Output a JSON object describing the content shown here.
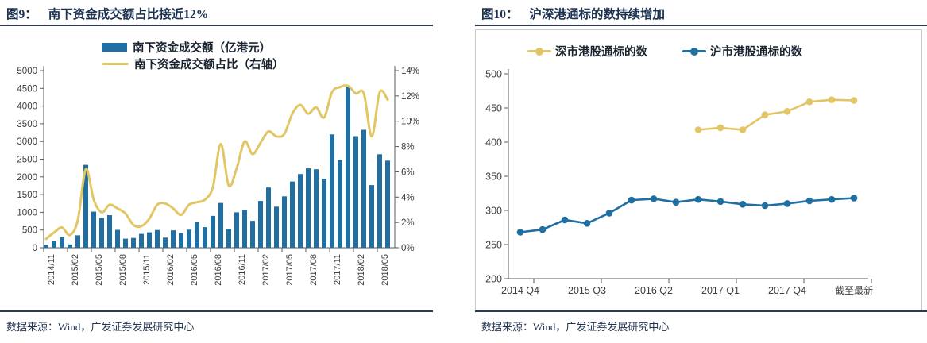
{
  "colors": {
    "bar_blue": "#1F6FA3",
    "line_yellow": "#E2C665",
    "title_navy": "#1C3250",
    "rule_navy": "#2B3A52",
    "frame_gray": "#C9C9C9",
    "axis_gray": "#595959",
    "axis_text": "#3d3d3d"
  },
  "figures": [
    {
      "title_prefix": "图9：",
      "title": "南下资金成交额占比接近12%",
      "source": "数据来源：Wind，广发证券发展研究中心",
      "chart_data": {
        "type": "combo bar+line",
        "categories": [
          "2014/11",
          "2014/12",
          "2015/01",
          "2015/02",
          "2015/03",
          "2015/04",
          "2015/05",
          "2015/06",
          "2015/07",
          "2015/08",
          "2015/09",
          "2015/10",
          "2015/11",
          "2015/12",
          "2016/01",
          "2016/02",
          "2016/03",
          "2016/04",
          "2016/05",
          "2016/06",
          "2016/07",
          "2016/08",
          "2016/09",
          "2016/10",
          "2016/11",
          "2016/12",
          "2017/01",
          "2017/02",
          "2017/03",
          "2017/04",
          "2017/05",
          "2017/06",
          "2017/07",
          "2017/08",
          "2017/09",
          "2017/10",
          "2017/11",
          "2017/12",
          "2018/01",
          "2018/02",
          "2018/03",
          "2018/04",
          "2018/05",
          "2018/06"
        ],
        "x_tick_labels": [
          "2014/11",
          "2015/02",
          "2015/05",
          "2015/08",
          "2015/11",
          "2016/02",
          "2016/05",
          "2016/08",
          "2016/11",
          "2017/02",
          "2017/05",
          "2017/08",
          "2017/11",
          "2018/02",
          "2018/05"
        ],
        "series": [
          {
            "name": "南下资金成交额（亿港元）",
            "type": "bar",
            "axis": "left",
            "color": "#1F6FA3",
            "values": [
              80,
              180,
              295,
              95,
              350,
              2340,
              1020,
              840,
              920,
              505,
              255,
              275,
              390,
              435,
              500,
              285,
              490,
              410,
              510,
              720,
              580,
              900,
              1265,
              530,
              1000,
              1070,
              760,
              1320,
              1700,
              1160,
              1450,
              1870,
              2080,
              2240,
              2215,
              1950,
              3200,
              2470,
              4560,
              3150,
              3330,
              1770,
              2640,
              2460
            ]
          },
          {
            "name": "南下资金成交额占比（右轴）",
            "type": "line",
            "axis": "right",
            "color": "#E2C665",
            "values": [
              0.7,
              1.2,
              1.6,
              1.0,
              2.2,
              6.2,
              3.8,
              2.8,
              3.4,
              3.1,
              2.7,
              1.8,
              1.7,
              2.3,
              3.4,
              3.5,
              3.1,
              2.6,
              3.4,
              3.6,
              3.8,
              4.8,
              8.2,
              4.9,
              6.3,
              8.4,
              7.4,
              8.3,
              9.2,
              8.8,
              9.0,
              10.6,
              11.3,
              10.6,
              11.1,
              10.3,
              12.3,
              12.7,
              12.8,
              12.2,
              12.2,
              8.8,
              12.3,
              11.7
            ]
          }
        ],
        "left_axis": {
          "min": 0,
          "max": 5000,
          "step": 500
        },
        "right_axis": {
          "min": 0,
          "max": 14,
          "step": 2,
          "suffix": "%"
        },
        "legend_position": "top",
        "grid": false
      }
    },
    {
      "title_prefix": "图10：",
      "title": "沪深港通标的数持续增加",
      "source": "数据来源：Wind，广发证券发展研究中心",
      "chart_data": {
        "type": "line",
        "categories": [
          "2014 Q4",
          "2015 Q1",
          "2015 Q2",
          "2015 Q3",
          "2015 Q4",
          "2016 Q1",
          "2016 Q2",
          "2016 Q3",
          "2016 Q4",
          "2017 Q1",
          "2017 Q2",
          "2017 Q3",
          "2017 Q4",
          "2018 Q1",
          "2018 Q2",
          "截至最新"
        ],
        "x_tick_labels": [
          "2014 Q4",
          "2015 Q3",
          "2016 Q2",
          "2017 Q1",
          "2017 Q4",
          "截至最新"
        ],
        "series": [
          {
            "name": "深市港股通标的数",
            "color": "#E2C665",
            "start_index": 8,
            "values": [
              418,
              421,
              418,
              440,
              445,
              459,
              462,
              461
            ]
          },
          {
            "name": "沪市港股通标的数",
            "color": "#1F6FA3",
            "start_index": 0,
            "values": [
              268,
              272,
              286,
              281,
              296,
              315,
              317,
              312,
              316,
              313,
              309,
              307,
              310,
              314,
              316,
              318
            ]
          }
        ],
        "y_axis": {
          "min": 200,
          "max": 500,
          "step": 50
        },
        "legend_position": "top",
        "grid": false,
        "markers": true
      }
    }
  ]
}
